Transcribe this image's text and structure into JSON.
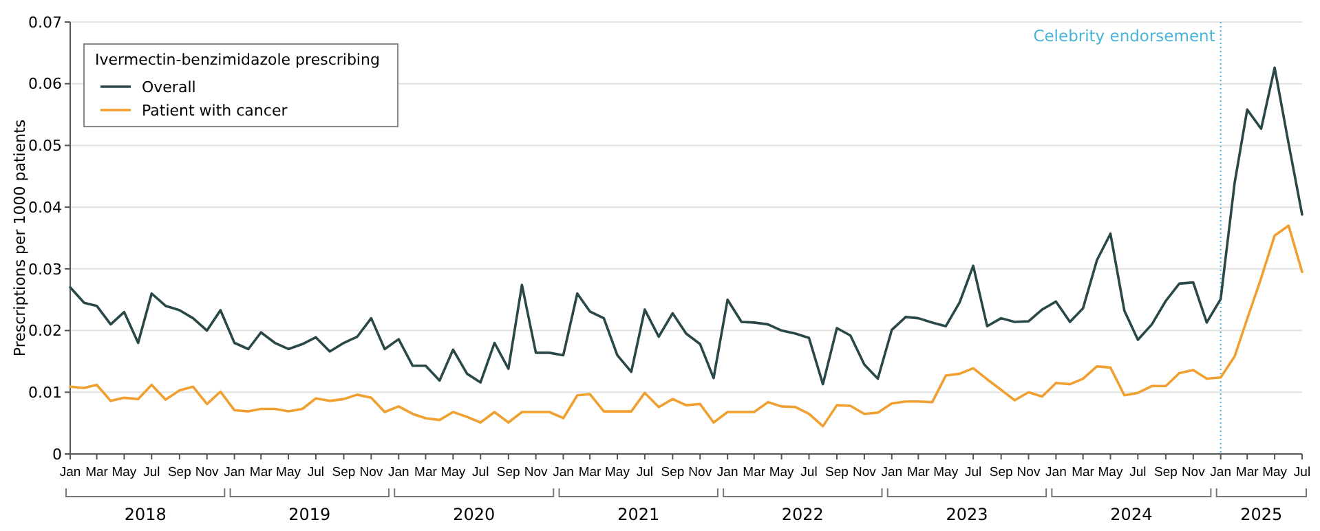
{
  "chart_data": {
    "type": "line",
    "ylabel": "Prescriptions per 1000 patients",
    "legend_title": "Ivermectin-benzimidazole prescribing",
    "legend": "top left",
    "grid": "y",
    "line_style": "solid",
    "marker": "none",
    "x": [
      "2018-01",
      "2018-02",
      "2018-03",
      "2018-04",
      "2018-05",
      "2018-06",
      "2018-07",
      "2018-08",
      "2018-09",
      "2018-10",
      "2018-11",
      "2018-12",
      "2019-01",
      "2019-02",
      "2019-03",
      "2019-04",
      "2019-05",
      "2019-06",
      "2019-07",
      "2019-08",
      "2019-09",
      "2019-10",
      "2019-11",
      "2019-12",
      "2020-01",
      "2020-02",
      "2020-03",
      "2020-04",
      "2020-05",
      "2020-06",
      "2020-07",
      "2020-08",
      "2020-09",
      "2020-10",
      "2020-11",
      "2020-12",
      "2021-01",
      "2021-02",
      "2021-03",
      "2021-04",
      "2021-05",
      "2021-06",
      "2021-07",
      "2021-08",
      "2021-09",
      "2021-10",
      "2021-11",
      "2021-12",
      "2022-01",
      "2022-02",
      "2022-03",
      "2022-04",
      "2022-05",
      "2022-06",
      "2022-07",
      "2022-08",
      "2022-09",
      "2022-10",
      "2022-11",
      "2022-12",
      "2023-01",
      "2023-02",
      "2023-03",
      "2023-04",
      "2023-05",
      "2023-06",
      "2023-07",
      "2023-08",
      "2023-09",
      "2023-10",
      "2023-11",
      "2023-12",
      "2024-01",
      "2024-02",
      "2024-03",
      "2024-04",
      "2024-05",
      "2024-06",
      "2024-07",
      "2024-08",
      "2024-09",
      "2024-10",
      "2024-11",
      "2024-12",
      "2025-01",
      "2025-02",
      "2025-03",
      "2025-04",
      "2025-05",
      "2025-06",
      "2025-07"
    ],
    "series": [
      {
        "name": "Overall",
        "color": "#2b4848",
        "values": [
          0.027,
          0.0245,
          0.024,
          0.021,
          0.023,
          0.018,
          0.026,
          0.024,
          0.0233,
          0.022,
          0.02,
          0.0233,
          0.018,
          0.017,
          0.0197,
          0.018,
          0.017,
          0.0178,
          0.0189,
          0.0166,
          0.018,
          0.019,
          0.022,
          0.017,
          0.0186,
          0.0143,
          0.0143,
          0.0119,
          0.0169,
          0.013,
          0.0116,
          0.018,
          0.0138,
          0.0274,
          0.0164,
          0.0164,
          0.016,
          0.026,
          0.0231,
          0.022,
          0.016,
          0.0133,
          0.0234,
          0.019,
          0.0228,
          0.0195,
          0.0178,
          0.0123,
          0.025,
          0.0214,
          0.0213,
          0.021,
          0.02,
          0.0195,
          0.0188,
          0.0113,
          0.0204,
          0.0192,
          0.0145,
          0.0122,
          0.0201,
          0.0222,
          0.022,
          0.0213,
          0.0207,
          0.0246,
          0.0305,
          0.0207,
          0.022,
          0.0214,
          0.0215,
          0.0234,
          0.0247,
          0.0214,
          0.0236,
          0.0314,
          0.0357,
          0.0232,
          0.0185,
          0.021,
          0.0248,
          0.0276,
          0.0278,
          0.0213,
          0.0251,
          0.0439,
          0.0558,
          0.0527,
          0.0626,
          0.0503,
          0.0388
        ]
      },
      {
        "name": "Patient with cancer",
        "color": "#f0a030",
        "values": [
          0.0109,
          0.0107,
          0.0112,
          0.0086,
          0.0091,
          0.0089,
          0.0112,
          0.0088,
          0.0103,
          0.0109,
          0.0081,
          0.0101,
          0.0071,
          0.0069,
          0.0073,
          0.0073,
          0.0069,
          0.0073,
          0.009,
          0.0086,
          0.0089,
          0.0096,
          0.0091,
          0.0068,
          0.0077,
          0.0065,
          0.0058,
          0.0055,
          0.0068,
          0.006,
          0.0051,
          0.0068,
          0.0051,
          0.0068,
          0.0068,
          0.0068,
          0.0058,
          0.0095,
          0.0097,
          0.0069,
          0.0069,
          0.0069,
          0.0099,
          0.0076,
          0.0089,
          0.0079,
          0.0081,
          0.0051,
          0.0068,
          0.0068,
          0.0068,
          0.0084,
          0.0077,
          0.0076,
          0.0065,
          0.0045,
          0.0079,
          0.0078,
          0.0065,
          0.0067,
          0.0082,
          0.0085,
          0.0085,
          0.0084,
          0.0127,
          0.013,
          0.0139,
          0.0121,
          0.0104,
          0.0087,
          0.01,
          0.0093,
          0.0115,
          0.0113,
          0.0122,
          0.0142,
          0.014,
          0.0095,
          0.0099,
          0.011,
          0.011,
          0.0131,
          0.0136,
          0.0122,
          0.0124,
          0.0158,
          0.0219,
          0.0285,
          0.0354,
          0.037,
          0.0295
        ]
      }
    ],
    "xlim": [
      "2018-01",
      "2025-07"
    ],
    "xticks": [
      {
        "value": "2018-01",
        "label": "Jan"
      },
      {
        "value": "2018-03",
        "label": "Mar"
      },
      {
        "value": "2018-05",
        "label": "May"
      },
      {
        "value": "2018-07",
        "label": "Jul"
      },
      {
        "value": "2018-09",
        "label": "Sep"
      },
      {
        "value": "2018-11",
        "label": "Nov"
      },
      {
        "value": "2019-01",
        "label": "Jan"
      },
      {
        "value": "2019-03",
        "label": "Mar"
      },
      {
        "value": "2019-05",
        "label": "May"
      },
      {
        "value": "2019-07",
        "label": "Jul"
      },
      {
        "value": "2019-09",
        "label": "Sep"
      },
      {
        "value": "2019-11",
        "label": "Nov"
      },
      {
        "value": "2020-01",
        "label": "Jan"
      },
      {
        "value": "2020-03",
        "label": "Mar"
      },
      {
        "value": "2020-05",
        "label": "May"
      },
      {
        "value": "2020-07",
        "label": "Jul"
      },
      {
        "value": "2020-09",
        "label": "Sep"
      },
      {
        "value": "2020-11",
        "label": "Nov"
      },
      {
        "value": "2021-01",
        "label": "Jan"
      },
      {
        "value": "2021-03",
        "label": "Mar"
      },
      {
        "value": "2021-05",
        "label": "May"
      },
      {
        "value": "2021-07",
        "label": "Jul"
      },
      {
        "value": "2021-09",
        "label": "Sep"
      },
      {
        "value": "2021-11",
        "label": "Nov"
      },
      {
        "value": "2022-01",
        "label": "Jan"
      },
      {
        "value": "2022-03",
        "label": "Mar"
      },
      {
        "value": "2022-05",
        "label": "May"
      },
      {
        "value": "2022-07",
        "label": "Jul"
      },
      {
        "value": "2022-09",
        "label": "Sep"
      },
      {
        "value": "2022-11",
        "label": "Nov"
      },
      {
        "value": "2023-01",
        "label": "Jan"
      },
      {
        "value": "2023-03",
        "label": "Mar"
      },
      {
        "value": "2023-05",
        "label": "May"
      },
      {
        "value": "2023-07",
        "label": "Jul"
      },
      {
        "value": "2023-09",
        "label": "Sep"
      },
      {
        "value": "2023-11",
        "label": "Nov"
      },
      {
        "value": "2024-01",
        "label": "Jan"
      },
      {
        "value": "2024-03",
        "label": "Mar"
      },
      {
        "value": "2024-05",
        "label": "May"
      },
      {
        "value": "2024-07",
        "label": "Jul"
      },
      {
        "value": "2024-09",
        "label": "Sep"
      },
      {
        "value": "2024-11",
        "label": "Nov"
      },
      {
        "value": "2025-01",
        "label": "Jan"
      },
      {
        "value": "2025-03",
        "label": "Mar"
      },
      {
        "value": "2025-05",
        "label": "May"
      },
      {
        "value": "2025-07",
        "label": "Jul"
      }
    ],
    "ylim": [
      0,
      0.07
    ],
    "yticks": [
      0,
      0.01,
      0.02,
      0.03,
      0.04,
      0.05,
      0.06,
      0.07
    ],
    "ref_lines": [
      {
        "axis": "x",
        "value": "2025-01",
        "label": "Celebrity endorsement",
        "color": "#4ab4d6",
        "line_style": "dotted"
      }
    ],
    "annotations": [
      "2018",
      "2019",
      "2020",
      "2021",
      "2022",
      "2023",
      "2024",
      "2025"
    ]
  }
}
